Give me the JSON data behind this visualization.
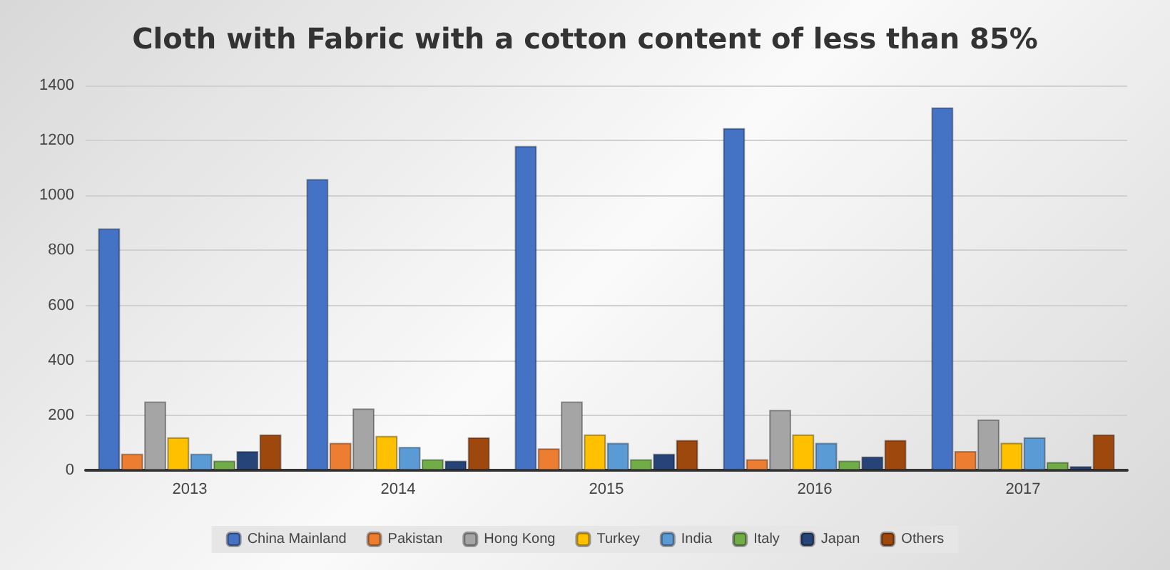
{
  "chart_data": {
    "type": "bar",
    "title": "Cloth with Fabric with a cotton content of less than 85%",
    "categories": [
      "2013",
      "2014",
      "2015",
      "2016",
      "2017"
    ],
    "series": [
      {
        "name": "China Mainland",
        "color": "#4472c4",
        "values": [
          880,
          1060,
          1180,
          1245,
          1320
        ]
      },
      {
        "name": "Pakistan",
        "color": "#ed7d31",
        "values": [
          60,
          100,
          80,
          40,
          70
        ]
      },
      {
        "name": "Hong Kong",
        "color": "#a5a5a5",
        "values": [
          250,
          225,
          250,
          220,
          185
        ]
      },
      {
        "name": "Turkey",
        "color": "#ffc000",
        "values": [
          120,
          125,
          130,
          130,
          100
        ]
      },
      {
        "name": "India",
        "color": "#5b9bd5",
        "values": [
          60,
          85,
          100,
          100,
          120
        ]
      },
      {
        "name": "Italy",
        "color": "#70ad47",
        "values": [
          35,
          40,
          40,
          35,
          30
        ]
      },
      {
        "name": "Japan",
        "color": "#264478",
        "values": [
          70,
          35,
          60,
          50,
          15
        ]
      },
      {
        "name": "Others",
        "color": "#9e480e",
        "values": [
          130,
          120,
          110,
          110,
          130
        ]
      }
    ],
    "ylim": [
      0,
      1400
    ],
    "yticks": [
      0,
      200,
      400,
      600,
      800,
      1000,
      1200,
      1400
    ],
    "grid": "y",
    "legend": "bottom"
  }
}
